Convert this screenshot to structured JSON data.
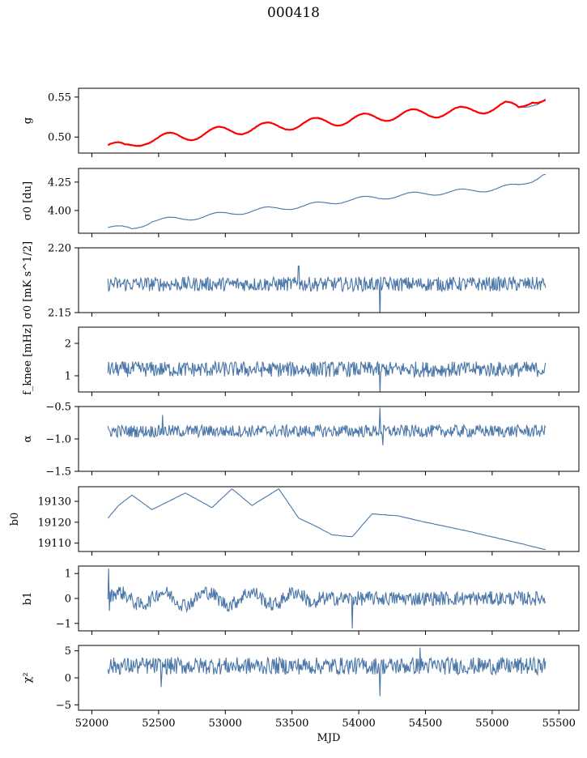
{
  "figure": {
    "title": "000418",
    "xlabel": "MJD",
    "xlim": [
      51900,
      55650
    ],
    "xticks": [
      52000,
      52500,
      53000,
      53500,
      54000,
      54500,
      55000,
      55500
    ],
    "line_color": "#4a76a8",
    "highlight_color": "#ff0000"
  },
  "chart_data": [
    {
      "type": "line",
      "ylabel": "g",
      "ylim": [
        0.48,
        0.561
      ],
      "yticks": [
        "0.50",
        "0.55"
      ],
      "x_range": [
        52120,
        55400
      ],
      "series": [
        {
          "style": "blue",
          "trend": [
            [
              52120,
              0.49
            ],
            [
              52250,
              0.486
            ],
            [
              52400,
              0.497
            ],
            [
              52700,
              0.501
            ],
            [
              53000,
              0.508
            ],
            [
              53300,
              0.512
            ],
            [
              53600,
              0.517
            ],
            [
              53900,
              0.521
            ],
            [
              54200,
              0.526
            ],
            [
              54500,
              0.53
            ],
            [
              54800,
              0.532
            ],
            [
              55000,
              0.537
            ],
            [
              55100,
              0.539
            ],
            [
              55200,
              0.535
            ],
            [
              55300,
              0.545
            ],
            [
              55400,
              0.548
            ]
          ],
          "oscillation": {
            "amplitude": 0.006,
            "period": 365
          }
        },
        {
          "style": "red",
          "trend": [
            [
              52120,
              0.49
            ],
            [
              52250,
              0.486
            ],
            [
              52400,
              0.497
            ],
            [
              52700,
              0.501
            ],
            [
              53000,
              0.508
            ],
            [
              53300,
              0.512
            ],
            [
              53600,
              0.517
            ],
            [
              53900,
              0.521
            ],
            [
              54200,
              0.526
            ],
            [
              54500,
              0.53
            ],
            [
              54800,
              0.532
            ],
            [
              55000,
              0.537
            ],
            [
              55100,
              0.539
            ],
            [
              55200,
              0.535
            ],
            [
              55300,
              0.549
            ],
            [
              55400,
              0.547
            ]
          ],
          "oscillation": {
            "amplitude": 0.006,
            "period": 365
          }
        }
      ]
    },
    {
      "type": "line",
      "ylabel": "σ0 [du]",
      "ylim": [
        3.8,
        4.37
      ],
      "yticks": [
        "4.00",
        "4.25"
      ],
      "x_range": [
        52120,
        55400
      ],
      "series": [
        {
          "style": "blue",
          "trend": [
            [
              52120,
              3.85
            ],
            [
              52300,
              3.84
            ],
            [
              52450,
              3.91
            ],
            [
              52700,
              3.93
            ],
            [
              53000,
              3.97
            ],
            [
              53300,
              4.01
            ],
            [
              53600,
              4.04
            ],
            [
              53900,
              4.09
            ],
            [
              54200,
              4.12
            ],
            [
              54500,
              4.15
            ],
            [
              54800,
              4.17
            ],
            [
              55000,
              4.19
            ],
            [
              55200,
              4.22
            ],
            [
              55300,
              4.27
            ],
            [
              55380,
              4.32
            ]
          ],
          "oscillation": {
            "amplitude": 0.02,
            "period": 365
          }
        }
      ]
    },
    {
      "type": "line",
      "ylabel": "σ0 [mK s^1/2]",
      "ylim": [
        2.15,
        2.2
      ],
      "yticks": [
        "2.15",
        "2.20"
      ],
      "x_range": [
        52120,
        55400
      ],
      "series": [
        {
          "style": "blue",
          "baseline": 2.172,
          "noise": 0.0035,
          "spikes": [
            [
              54160,
              2.144
            ],
            [
              53550,
              2.186
            ]
          ]
        }
      ]
    },
    {
      "type": "line",
      "ylabel": "f_knee [mHz]",
      "ylim": [
        0.5,
        2.5
      ],
      "yticks": [
        "1",
        "2"
      ],
      "x_range": [
        52120,
        55400
      ],
      "series": [
        {
          "style": "blue",
          "baseline": 1.2,
          "noise": 0.15,
          "spikes": [
            [
              54160,
              0.45
            ]
          ]
        }
      ]
    },
    {
      "type": "line",
      "ylabel": "α",
      "ylim": [
        -1.5,
        -0.5
      ],
      "yticks": [
        "−1.5",
        "−1.0",
        "−0.5"
      ],
      "x_range": [
        52120,
        55400
      ],
      "series": [
        {
          "style": "blue",
          "baseline": -0.88,
          "noise": 0.06,
          "spikes": [
            [
              54160,
              -0.52
            ],
            [
              52530,
              -0.63
            ],
            [
              54180,
              -1.1
            ]
          ]
        }
      ]
    },
    {
      "type": "line",
      "ylabel": "b0",
      "ylim": [
        19106,
        19137
      ],
      "yticks": [
        "19110",
        "19120",
        "19130"
      ],
      "x_range": [
        52120,
        55400
      ],
      "series": [
        {
          "style": "blue",
          "trend": [
            [
              52120,
              19122
            ],
            [
              52200,
              19128
            ],
            [
              52300,
              19133
            ],
            [
              52450,
              19126
            ],
            [
              52700,
              19134
            ],
            [
              52900,
              19127
            ],
            [
              53050,
              19136
            ],
            [
              53200,
              19128
            ],
            [
              53400,
              19136
            ],
            [
              53550,
              19122
            ],
            [
              53650,
              19119
            ],
            [
              53800,
              19114
            ],
            [
              53950,
              19113
            ],
            [
              54100,
              19124
            ],
            [
              54300,
              19123
            ],
            [
              54500,
              19120
            ],
            [
              54800,
              19116
            ],
            [
              55000,
              19113
            ],
            [
              55200,
              19110
            ],
            [
              55390,
              19107
            ]
          ],
          "oscillation": {
            "amplitude": 0,
            "period": 365
          }
        }
      ]
    },
    {
      "type": "line",
      "ylabel": "b1",
      "ylim": [
        -1.3,
        1.3
      ],
      "yticks": [
        "−1",
        "0",
        "1"
      ],
      "x_range": [
        52120,
        55400
      ],
      "series": [
        {
          "style": "blue",
          "baseline": 0.0,
          "noise": 0.18,
          "wave": {
            "amplitude": 0.25,
            "period": 330,
            "end": 53700
          },
          "spikes": [
            [
              52125,
              1.2
            ],
            [
              53950,
              -1.2
            ],
            [
              52130,
              -0.5
            ]
          ]
        }
      ]
    },
    {
      "type": "line",
      "ylabel": "χ²",
      "ylim": [
        -6,
        6
      ],
      "yticks": [
        "−5",
        "0",
        "5"
      ],
      "x_range": [
        52120,
        55400
      ],
      "series": [
        {
          "style": "blue",
          "baseline": 2.2,
          "noise": 1.0,
          "spikes": [
            [
              54160,
              -3.4
            ],
            [
              52520,
              -1.7
            ],
            [
              54460,
              5.6
            ]
          ]
        }
      ]
    }
  ]
}
